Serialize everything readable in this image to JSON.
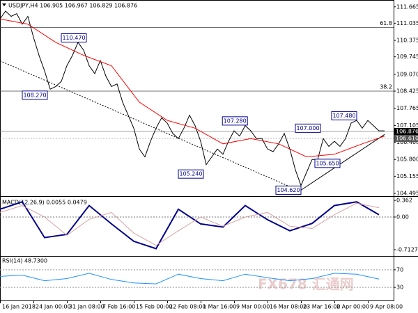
{
  "watermark": "FX678 汇通网",
  "chart_data": [
    {
      "type": "line",
      "title": "USDJPY,H4 106.905 106.967 106.829 106.876",
      "xlim": [
        0,
        70
      ],
      "ylim": [
        104.39,
        111.82
      ],
      "yticks": [
        111.665,
        111.035,
        110.375,
        109.745,
        {
          "value": 109.07,
          "label": "109.070"
        },
        108.425,
        107.765,
        107.105,
        {
          "value": 106.46,
          "label": "106.460"
        },
        {
          "value": 105.8,
          "label": "105.800"
        },
        105.155,
        104.495
      ],
      "series": [
        {
          "color": "#000000",
          "x": [
            0,
            1,
            2,
            3,
            4,
            5,
            6,
            7,
            8,
            9,
            10,
            11,
            12,
            13,
            14,
            15,
            16,
            17,
            18,
            19,
            20,
            21,
            22,
            23,
            24,
            25,
            26,
            27,
            28,
            29,
            30,
            31,
            32,
            33,
            34,
            35,
            36,
            37,
            38,
            39,
            40,
            41,
            42,
            43,
            44,
            45,
            46,
            47,
            48,
            49,
            50,
            51,
            52,
            53,
            54,
            55,
            56,
            57,
            58,
            59,
            60,
            61,
            62,
            63,
            64,
            65,
            66,
            67,
            68,
            69
          ],
          "values": [
            111.2,
            111.5,
            111.3,
            111.4,
            111.0,
            111.3,
            110.5,
            109.8,
            109.2,
            108.5,
            108.6,
            108.8,
            109.4,
            109.8,
            110.3,
            110.0,
            109.4,
            109.1,
            109.6,
            109.0,
            108.6,
            108.7,
            108.0,
            107.5,
            107.0,
            106.2,
            105.9,
            106.5,
            107.0,
            107.4,
            107.2,
            106.8,
            106.6,
            107.0,
            107.5,
            107.1,
            106.5,
            105.6,
            105.9,
            106.2,
            106.0,
            106.5,
            106.9,
            106.7,
            107.1,
            106.9,
            106.6,
            106.6,
            106.2,
            106.1,
            106.4,
            106.8,
            106.2,
            105.4,
            104.8,
            105.3,
            105.8,
            105.8,
            106.6,
            106.3,
            106.5,
            106.3,
            106.6,
            107.2,
            107.3,
            107.0,
            107.3,
            107.1,
            106.9,
            106.9
          ]
        },
        {
          "color": "#ff0000",
          "x": [
            0,
            5,
            10,
            15,
            20,
            25,
            30,
            35,
            40,
            45,
            50,
            55,
            60,
            65,
            69
          ],
          "values": [
            111.2,
            111.0,
            110.3,
            109.8,
            109.4,
            108.0,
            107.3,
            107.0,
            106.4,
            106.6,
            106.4,
            105.9,
            106.0,
            106.4,
            106.7
          ]
        }
      ],
      "levels": [
        {
          "price": 110.868,
          "text": "61.8"
        },
        {
          "price": 108.425,
          "text": "38.2"
        }
      ],
      "trendlines": [
        {
          "x": [
            0,
            54
          ],
          "values": [
            109.59,
            104.57
          ],
          "style": "dotted"
        },
        {
          "x": [
            54,
            69
          ],
          "values": [
            104.62,
            106.76
          ],
          "style": "solid"
        }
      ],
      "price_marks": [
        {
          "value": 106.876,
          "label": "106.876",
          "color": "#000000"
        },
        {
          "value": 106.61,
          "label": "106.610",
          "color": "#555555"
        }
      ],
      "annotations": [
        {
          "x": 15.5,
          "price": 110.47,
          "text": "110.470"
        },
        {
          "x": 8.5,
          "price": 108.27,
          "text": "108.270"
        },
        {
          "x": 44.4,
          "price": 107.28,
          "text": "107.280"
        },
        {
          "x": 57.5,
          "price": 107.0,
          "text": "107.000"
        },
        {
          "x": 64,
          "price": 107.48,
          "text": "107.480"
        },
        {
          "x": 61,
          "price": 105.65,
          "text": "105.650"
        },
        {
          "x": 36.5,
          "price": 105.24,
          "text": "105.240"
        },
        {
          "x": 54,
          "price": 104.62,
          "text": "104.620"
        }
      ]
    },
    {
      "type": "line",
      "title": "MACD(12,26,9) 0.0055 0.0479",
      "xlim": [
        0,
        70
      ],
      "ylim": [
        -0.85,
        0.44
      ],
      "yticks": [
        0.362,
        {
          "value": 0,
          "label": "0.00"
        },
        -0.7127
      ],
      "zero_line": true,
      "series": [
        {
          "color": "#00008b",
          "width": 2,
          "x": [
            0,
            4,
            8,
            12,
            16,
            20,
            24,
            28,
            32,
            36,
            40,
            44,
            48,
            52,
            56,
            60,
            64,
            68
          ],
          "values": [
            0.17,
            0.33,
            -0.45,
            -0.38,
            0.25,
            -0.15,
            -0.53,
            -0.69,
            0.17,
            -0.15,
            -0.22,
            0.25,
            -0.06,
            -0.3,
            -0.14,
            0.25,
            0.33,
            0.05
          ]
        },
        {
          "color": "#d9a0a0",
          "width": 1,
          "x": [
            0,
            4,
            8,
            12,
            16,
            20,
            24,
            28,
            32,
            36,
            40,
            44,
            48,
            52,
            56,
            60,
            64,
            68
          ],
          "values": [
            0.1,
            0.25,
            0.0,
            -0.4,
            -0.05,
            0.1,
            -0.35,
            -0.62,
            -0.3,
            0.0,
            -0.2,
            0.0,
            0.1,
            -0.2,
            -0.25,
            0.05,
            0.3,
            0.2
          ]
        }
      ]
    },
    {
      "type": "line",
      "title": "RSI(14) 48.7300",
      "xlim": [
        0,
        70
      ],
      "ylim": [
        0,
        100
      ],
      "yticks": [
        70,
        30
      ],
      "grid": true,
      "xticks": [
        {
          "value": 0,
          "label": "16 Jan 2018"
        },
        {
          "value": 6,
          "label": "24 Jan 00:00"
        },
        {
          "value": 12,
          "label": "31 Jan 08:00"
        },
        {
          "value": 18,
          "label": "7 Feb 16:00"
        },
        {
          "value": 24,
          "label": "15 Feb 00:00"
        },
        {
          "value": 30,
          "label": "22 Feb 08:00"
        },
        {
          "value": 36,
          "label": "1 Mar 16:00"
        },
        {
          "value": 42,
          "label": "9 Mar 00:00"
        },
        {
          "value": 48,
          "label": "16 Mar 08:00"
        },
        {
          "value": 54,
          "label": "23 Mar 16:00"
        },
        {
          "value": 60,
          "label": "2 Apr 00:00"
        },
        {
          "value": 66,
          "label": "9 Apr 08:00"
        }
      ],
      "series": [
        {
          "color": "#1e90ff",
          "width": 1,
          "x": [
            0,
            4,
            8,
            12,
            16,
            20,
            24,
            28,
            32,
            36,
            40,
            44,
            48,
            52,
            56,
            60,
            64,
            68
          ],
          "values": [
            55,
            58,
            45,
            50,
            62,
            48,
            40,
            38,
            60,
            50,
            45,
            60,
            52,
            45,
            50,
            62,
            60,
            48.73
          ]
        }
      ]
    }
  ]
}
